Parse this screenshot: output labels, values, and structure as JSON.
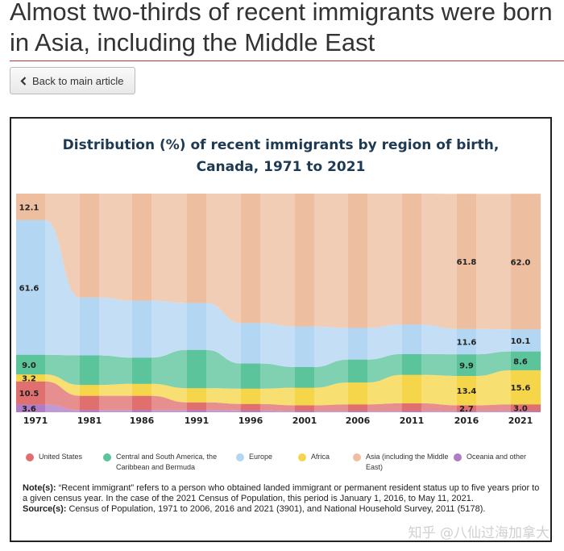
{
  "page": {
    "title": "Almost two-thirds of recent immigrants were born in Asia, including the Middle East",
    "back_label": "Back to main article"
  },
  "chart_title": {
    "line1": "Distribution (%) of recent immigrants by region of birth,",
    "line2": "Canada, 1971 to 2021"
  },
  "chart_data": {
    "type": "area",
    "title": "Distribution (%) of recent immigrants by region of birth, Canada, 1971 to 2021",
    "x": [
      "1971",
      "1981",
      "1986",
      "1991",
      "1996",
      "2001",
      "2006",
      "2011",
      "2016",
      "2021"
    ],
    "ylim": [
      0,
      100
    ],
    "stack_order_bottom_to_top": [
      "Oceania and other",
      "United States",
      "Africa",
      "Central and South America, the Caribbean and Bermuda",
      "Europe",
      "Asia (including the Middle East)"
    ],
    "series": [
      {
        "name": "Oceania and other",
        "color": "#b07cc6",
        "values": [
          3.6,
          1.0,
          1.0,
          1.0,
          0.8,
          0.6,
          0.6,
          0.6,
          0.5,
          0.6
        ]
      },
      {
        "name": "United States",
        "color": "#e07070",
        "values": [
          10.5,
          6.5,
          6.5,
          3.5,
          3.0,
          2.6,
          3.0,
          3.5,
          2.7,
          3.0
        ]
      },
      {
        "name": "Africa",
        "color": "#f5d64a",
        "values": [
          3.2,
          5.0,
          5.5,
          6.5,
          7.0,
          8.0,
          10.0,
          13.0,
          13.4,
          15.6
        ]
      },
      {
        "name": "Central and South America, the Caribbean and Bermuda",
        "color": "#5cc49b",
        "values": [
          9.0,
          13.5,
          12.0,
          17.5,
          11.5,
          9.5,
          10.5,
          9.5,
          9.9,
          8.6
        ]
      },
      {
        "name": "Europe",
        "color": "#b3d6f2",
        "values": [
          61.6,
          26.5,
          26.0,
          21.5,
          18.5,
          18.5,
          14.5,
          13.5,
          11.6,
          10.1
        ]
      },
      {
        "name": "Asia (including the Middle East)",
        "color": "#edbfa0",
        "values": [
          12.1,
          47.5,
          49.0,
          50.0,
          59.2,
          60.8,
          61.4,
          59.9,
          61.8,
          62.0
        ]
      }
    ],
    "data_labels": [
      {
        "series": "Europe",
        "x": "1971",
        "text": "61.6"
      },
      {
        "series": "Asia (including the Middle East)",
        "x": "1971",
        "text": "12.1"
      },
      {
        "series": "United States",
        "x": "1971",
        "text": "10.5"
      },
      {
        "series": "Central and South America, the Caribbean and Bermuda",
        "x": "1971",
        "text": "9.0"
      },
      {
        "series": "Oceania and other",
        "x": "1971",
        "text": "3.6"
      },
      {
        "series": "Africa",
        "x": "1971",
        "text": "3.2"
      },
      {
        "series": "Asia (including the Middle East)",
        "x": "2016",
        "text": "61.8"
      },
      {
        "series": "Africa",
        "x": "2016",
        "text": "13.4"
      },
      {
        "series": "Europe",
        "x": "2016",
        "text": "11.6"
      },
      {
        "series": "Central and South America, the Caribbean and Bermuda",
        "x": "2016",
        "text": "9.9"
      },
      {
        "series": "United States",
        "x": "2016",
        "text": "2.7"
      },
      {
        "series": "Asia (including the Middle East)",
        "x": "2021",
        "text": "62.0"
      },
      {
        "series": "Africa",
        "x": "2021",
        "text": "15.6"
      },
      {
        "series": "Europe",
        "x": "2021",
        "text": "10.1"
      },
      {
        "series": "Central and South America, the Caribbean and Bermuda",
        "x": "2021",
        "text": "8.6"
      },
      {
        "series": "United States",
        "x": "2021",
        "text": "3.0"
      }
    ]
  },
  "legend": [
    {
      "label": "United States",
      "color": "#e07070"
    },
    {
      "label": "Central and South America, the Caribbean and Bermuda",
      "color": "#5cc49b"
    },
    {
      "label": "Europe",
      "color": "#b3d6f2"
    },
    {
      "label": "Africa",
      "color": "#f5d64a"
    },
    {
      "label": "Asia (including the Middle East)",
      "color": "#edbfa0"
    },
    {
      "label": "Oceania and other",
      "color": "#b07cc6"
    }
  ],
  "notes": {
    "note_label": "Note(s):",
    "note_text": "“Recent immigrant” refers to a person who obtained landed immigrant or permanent resident status up to five years prior to a given census year. In the case of the 2021 Census of Population, this period is January 1, 2016, to May 11, 2021.",
    "source_label": "Source(s):",
    "source_text": "Census of Population, 1971 to 2006, 2016 and 2021 (3901), and National Household Survey, 2011 (5178)."
  },
  "watermark": "知乎 @八仙过海加拿大"
}
